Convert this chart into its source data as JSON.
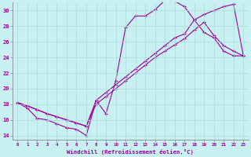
{
  "xlabel": "Windchill (Refroidissement éolien,°C)",
  "background_color": "#c8f0f0",
  "line_color": "#990099",
  "grid_color": "#aadddd",
  "xlim": [
    -0.5,
    23.5
  ],
  "ylim": [
    13.5,
    31.0
  ],
  "yticks": [
    14,
    16,
    18,
    20,
    22,
    24,
    26,
    28,
    30
  ],
  "xticks": [
    0,
    1,
    2,
    3,
    4,
    5,
    6,
    7,
    8,
    9,
    10,
    11,
    12,
    13,
    14,
    15,
    16,
    17,
    18,
    19,
    20,
    21,
    22,
    23
  ],
  "line1_x": [
    0,
    1,
    2,
    3,
    4,
    5,
    6,
    7,
    8,
    9,
    10,
    11,
    12,
    13,
    14,
    15,
    16,
    17,
    18,
    19,
    20,
    21,
    22,
    23
  ],
  "line1_y": [
    18.2,
    17.5,
    16.2,
    16.0,
    15.5,
    15.0,
    14.8,
    14.0,
    18.5,
    16.8,
    21.0,
    27.8,
    29.3,
    29.3,
    30.1,
    31.3,
    31.2,
    30.5,
    28.8,
    27.2,
    26.5,
    24.8,
    24.2,
    24.2
  ],
  "line2_x": [
    0,
    1,
    2,
    3,
    4,
    5,
    6,
    7,
    8,
    9,
    10,
    11,
    12,
    13,
    14,
    15,
    16,
    17,
    18,
    19,
    20,
    21,
    22,
    23
  ],
  "line2_y": [
    18.2,
    17.8,
    17.3,
    16.8,
    16.4,
    16.0,
    15.6,
    15.2,
    18.5,
    19.5,
    20.5,
    21.5,
    22.5,
    23.5,
    24.5,
    25.5,
    26.5,
    27.0,
    28.8,
    29.5,
    30.0,
    30.5,
    30.8,
    24.2
  ],
  "line3_x": [
    0,
    1,
    2,
    3,
    4,
    5,
    6,
    7,
    8,
    9,
    10,
    11,
    12,
    13,
    14,
    15,
    16,
    17,
    18,
    19,
    20,
    21,
    22,
    23
  ],
  "line3_y": [
    18.2,
    17.8,
    17.3,
    16.8,
    16.4,
    16.0,
    15.6,
    15.2,
    18.0,
    19.0,
    20.0,
    21.0,
    22.0,
    23.0,
    24.0,
    24.8,
    25.6,
    26.4,
    27.5,
    28.5,
    26.8,
    25.5,
    24.8,
    24.2
  ]
}
